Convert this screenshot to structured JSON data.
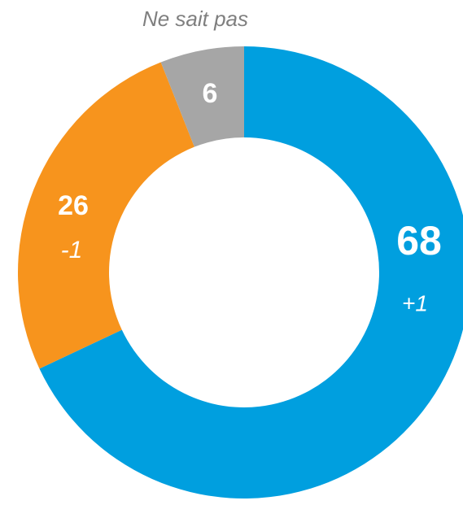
{
  "chart_data": {
    "type": "donut",
    "categories": [
      null,
      null,
      "Ne sait pas"
    ],
    "values": [
      68,
      26,
      6
    ],
    "changes": [
      "+1",
      "-1",
      null
    ],
    "colors": [
      "#009fdf",
      "#f7941d",
      "#a6a6a6"
    ]
  }
}
